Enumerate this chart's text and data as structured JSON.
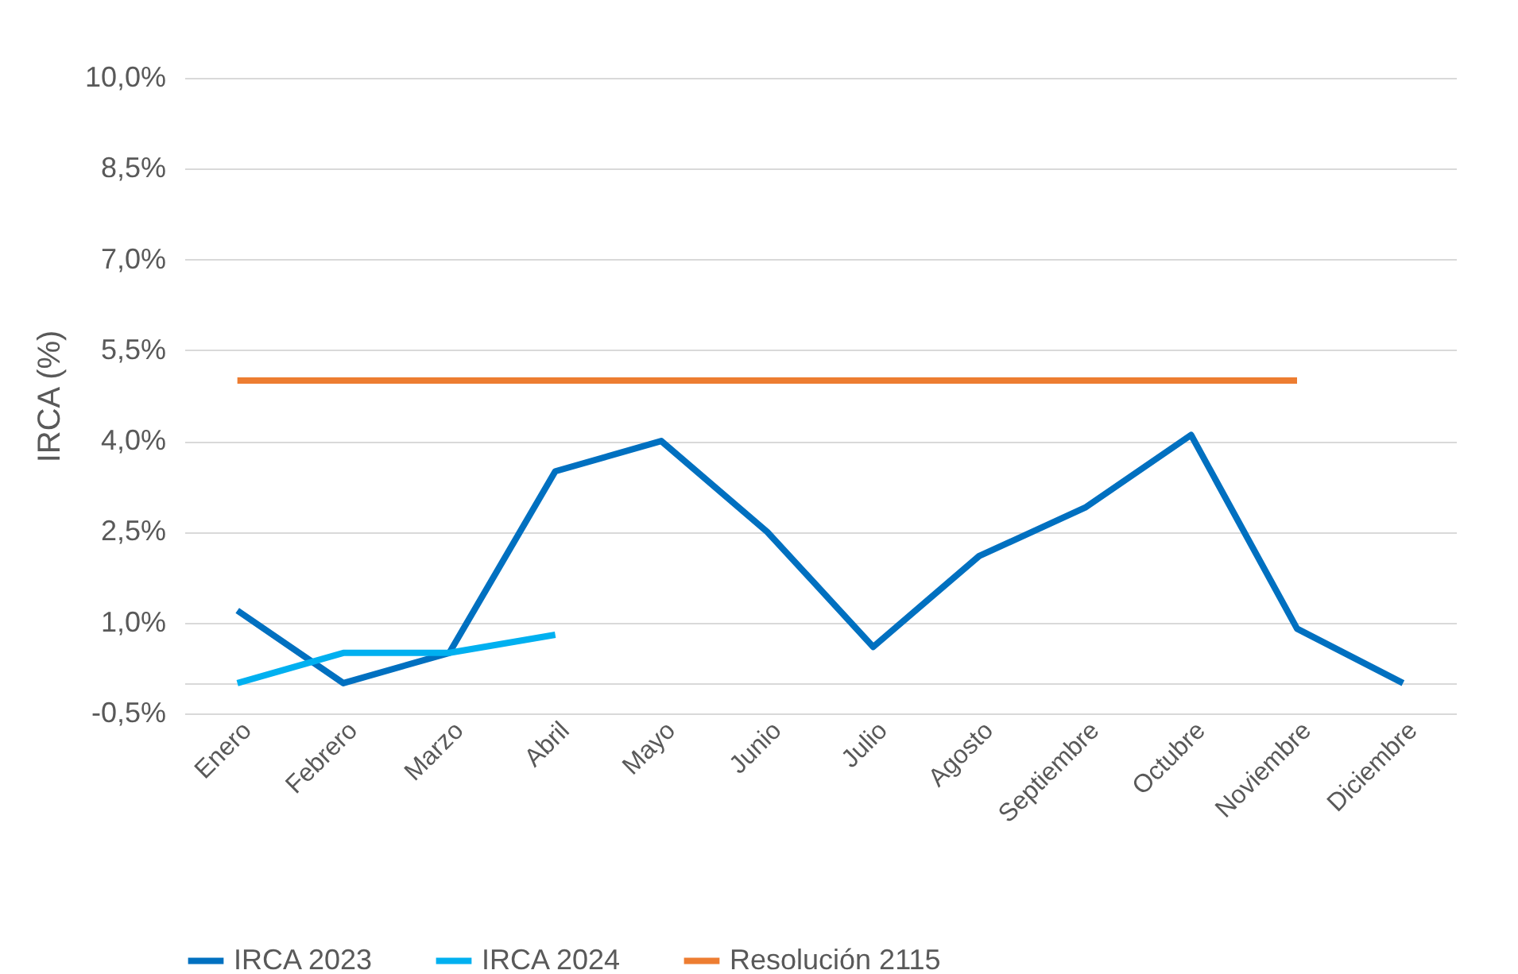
{
  "chart_data": {
    "type": "line",
    "ylabel": "IRCA (%)",
    "categories": [
      "Enero",
      "Febrero",
      "Marzo",
      "Abril",
      "Mayo",
      "Junio",
      "Julio",
      "Agosto",
      "Septiembre",
      "Octubre",
      "Noviembre",
      "Diciembre"
    ],
    "series": [
      {
        "name": "IRCA 2023",
        "color": "#0070c0",
        "values": [
          1.2,
          0,
          0.5,
          3.5,
          4.0,
          2.5,
          0.6,
          2.1,
          2.9,
          4.1,
          0.9,
          0
        ]
      },
      {
        "name": "IRCA 2024",
        "color": "#00b0f0",
        "values": [
          0,
          0.5,
          0.5,
          0.8,
          null,
          null,
          null,
          null,
          null,
          null,
          null,
          null
        ]
      },
      {
        "name": "Resolución 2115",
        "color": "#ed7d31",
        "values": [
          5,
          5,
          5,
          5,
          5,
          5,
          5,
          5,
          5,
          5,
          5,
          null
        ]
      }
    ],
    "ylim": [
      -0.5,
      10
    ],
    "yticks": [
      {
        "value": -0.5,
        "label": "-0,5%"
      },
      {
        "value": 0,
        "label": null
      },
      {
        "value": 1,
        "label": "1,0%"
      },
      {
        "value": 2.5,
        "label": "2,5%"
      },
      {
        "value": 4,
        "label": "4,0%"
      },
      {
        "value": 5.5,
        "label": "5,5%"
      },
      {
        "value": 7,
        "label": "7,0%"
      },
      {
        "value": 8.5,
        "label": "8,5%"
      },
      {
        "value": 10,
        "label": "10,0%"
      }
    ],
    "grid": "y",
    "legend": "bottom",
    "marker": "none",
    "line_style": "solid"
  }
}
